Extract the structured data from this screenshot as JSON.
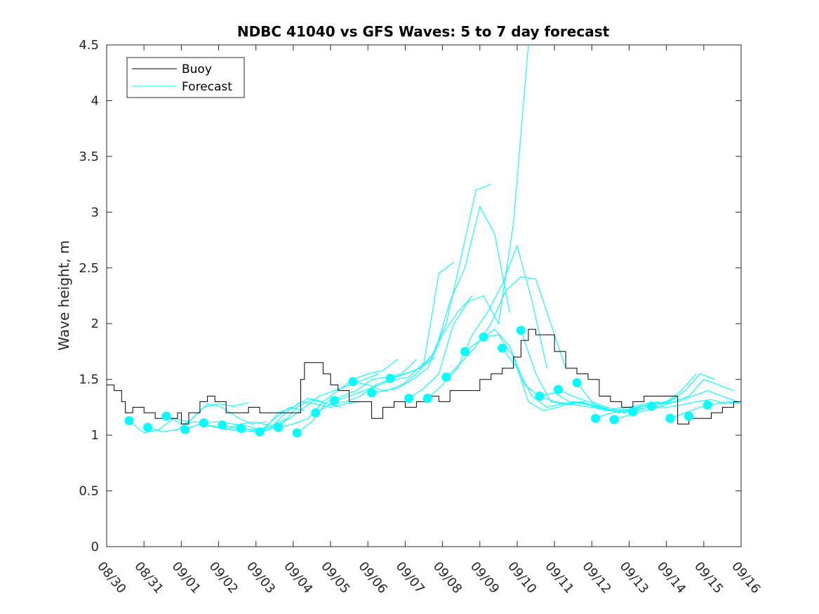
{
  "chart_data": {
    "type": "line",
    "title": "NDBC 41040 vs GFS Waves: 5 to 7 day forecast",
    "xlabel": "",
    "ylabel": "Wave height, m",
    "xlim": [
      0,
      17
    ],
    "ylim": [
      0,
      4.5
    ],
    "x_tick_labels": [
      "08/30",
      "08/31",
      "09/01",
      "09/02",
      "09/03",
      "09/04",
      "09/05",
      "09/06",
      "09/07",
      "09/08",
      "09/09",
      "09/10",
      "09/11",
      "09/12",
      "09/13",
      "09/14",
      "09/15",
      "09/16"
    ],
    "y_tick_labels": [
      "0",
      "0.5",
      "1",
      "1.5",
      "2",
      "2.5",
      "3",
      "3.5",
      "4",
      "4.5"
    ],
    "y_ticks": [
      0,
      0.5,
      1,
      1.5,
      2,
      2.5,
      3,
      3.5,
      4,
      4.5
    ],
    "legend": [
      {
        "label": "Buoy",
        "color": "#000000"
      },
      {
        "label": "Forecast",
        "color": "#00ffff"
      }
    ],
    "legend_position": "top-left",
    "colors": {
      "buoy": "#000000",
      "forecast": "#00ffff"
    },
    "buoy": {
      "x": [
        0,
        0.2,
        0.4,
        0.5,
        0.7,
        1.0,
        1.3,
        1.6,
        1.9,
        2.0,
        2.2,
        2.4,
        2.5,
        2.7,
        2.9,
        3.2,
        3.5,
        3.8,
        4.1,
        4.4,
        4.7,
        5.0,
        5.2,
        5.3,
        5.5,
        5.8,
        6.0,
        6.2,
        6.5,
        6.8,
        7.1,
        7.4,
        7.7,
        8.0,
        8.3,
        8.6,
        8.9,
        9.2,
        9.5,
        9.7,
        10.0,
        10.3,
        10.6,
        10.9,
        11.1,
        11.3,
        11.5,
        11.8,
        12.0,
        12.3,
        12.6,
        12.9,
        13.2,
        13.5,
        13.8,
        14.1,
        14.4,
        14.7,
        15.0,
        15.3,
        15.6,
        15.9,
        16.2,
        16.5,
        16.8,
        17.0
      ],
      "y": [
        1.45,
        1.4,
        1.3,
        1.2,
        1.25,
        1.2,
        1.15,
        1.15,
        1.2,
        1.1,
        1.2,
        1.2,
        1.3,
        1.35,
        1.3,
        1.2,
        1.2,
        1.25,
        1.2,
        1.2,
        1.2,
        1.2,
        1.5,
        1.65,
        1.65,
        1.55,
        1.45,
        1.4,
        1.3,
        1.3,
        1.15,
        1.25,
        1.3,
        1.25,
        1.3,
        1.35,
        1.3,
        1.4,
        1.4,
        1.4,
        1.5,
        1.55,
        1.6,
        1.7,
        1.85,
        1.95,
        1.9,
        1.9,
        1.75,
        1.6,
        1.55,
        1.5,
        1.35,
        1.3,
        1.25,
        1.3,
        1.35,
        1.35,
        1.35,
        1.1,
        1.15,
        1.15,
        1.2,
        1.25,
        1.3,
        1.3
      ]
    },
    "forecast_points": {
      "x": [
        0.6,
        1.1,
        1.6,
        2.1,
        2.6,
        3.1,
        3.6,
        4.1,
        4.6,
        5.1,
        5.6,
        6.1,
        6.6,
        7.1,
        7.6,
        8.1,
        8.6,
        9.1,
        9.6,
        10.1,
        10.6,
        11.1,
        11.6,
        12.1,
        12.6,
        13.1,
        13.6,
        14.1,
        14.6,
        15.1,
        15.6,
        16.1
      ],
      "y": [
        1.13,
        1.07,
        1.17,
        1.05,
        1.11,
        1.09,
        1.06,
        1.03,
        1.07,
        1.02,
        1.2,
        1.31,
        1.48,
        1.38,
        1.51,
        1.33,
        1.33,
        1.52,
        1.75,
        1.88,
        1.78,
        1.94,
        1.35,
        1.41,
        1.47,
        1.15,
        1.14,
        1.21,
        1.26,
        1.15,
        1.17,
        1.27
      ]
    },
    "forecast_runs": [
      {
        "x": [
          0.6,
          1.0,
          1.4,
          1.8,
          2.2,
          2.6,
          3.0,
          3.4,
          3.8
        ],
        "y": [
          1.13,
          1.02,
          1.05,
          1.15,
          1.12,
          1.25,
          1.28,
          1.26,
          1.29
        ]
      },
      {
        "x": [
          1.1,
          1.5,
          1.9,
          2.3,
          2.7,
          3.1,
          3.5,
          3.9,
          4.3
        ],
        "y": [
          1.07,
          1.03,
          1.05,
          1.15,
          1.28,
          1.25,
          1.16,
          1.1,
          1.12
        ]
      },
      {
        "x": [
          1.6,
          2.0,
          2.4,
          2.8,
          3.2,
          3.6,
          4.0,
          4.4,
          4.8
        ],
        "y": [
          1.17,
          1.1,
          1.12,
          1.08,
          1.05,
          1.1,
          1.12,
          1.08,
          1.15
        ]
      },
      {
        "x": [
          2.1,
          2.5,
          2.9,
          3.3,
          3.7,
          4.1,
          4.5,
          4.9,
          5.3
        ],
        "y": [
          1.05,
          1.1,
          1.08,
          1.05,
          1.04,
          1.03,
          1.15,
          1.25,
          1.22
        ]
      },
      {
        "x": [
          2.6,
          3.0,
          3.4,
          3.8,
          4.2,
          4.6,
          5.0,
          5.4,
          5.8
        ],
        "y": [
          1.11,
          1.12,
          1.1,
          1.08,
          1.04,
          1.2,
          1.25,
          1.33,
          1.3
        ]
      },
      {
        "x": [
          3.1,
          3.5,
          3.9,
          4.3,
          4.7,
          5.1,
          5.5,
          5.9,
          6.3
        ],
        "y": [
          1.09,
          1.06,
          1.05,
          1.04,
          1.1,
          1.25,
          1.32,
          1.28,
          1.25
        ]
      },
      {
        "x": [
          3.6,
          4.0,
          4.4,
          4.8,
          5.2,
          5.6,
          6.0,
          6.4,
          6.8
        ],
        "y": [
          1.06,
          1.05,
          1.07,
          1.2,
          1.3,
          1.28,
          1.25,
          1.28,
          1.3
        ]
      },
      {
        "x": [
          4.1,
          4.5,
          4.9,
          5.3,
          5.7,
          6.1,
          6.5,
          6.9,
          7.3
        ],
        "y": [
          1.03,
          1.08,
          1.15,
          1.25,
          1.35,
          1.4,
          1.45,
          1.5,
          1.55
        ]
      },
      {
        "x": [
          4.6,
          5.0,
          5.4,
          5.8,
          6.2,
          6.6,
          7.0,
          7.4,
          7.8
        ],
        "y": [
          1.07,
          1.1,
          1.15,
          1.3,
          1.4,
          1.5,
          1.55,
          1.58,
          1.68
        ]
      },
      {
        "x": [
          5.1,
          5.5,
          5.9,
          6.3,
          6.7,
          7.1,
          7.5,
          7.9,
          8.3
        ],
        "y": [
          1.02,
          1.12,
          1.3,
          1.35,
          1.4,
          1.5,
          1.52,
          1.55,
          1.68
        ]
      },
      {
        "x": [
          5.6,
          6.0,
          6.4,
          6.8,
          7.2,
          7.6,
          8.0,
          8.4,
          8.8
        ],
        "y": [
          1.2,
          1.28,
          1.3,
          1.35,
          1.45,
          1.5,
          1.55,
          1.6,
          1.7
        ]
      },
      {
        "x": [
          6.1,
          6.5,
          6.9,
          7.3,
          7.7,
          8.1,
          8.5,
          8.9,
          9.3
        ],
        "y": [
          1.31,
          1.35,
          1.4,
          1.45,
          1.5,
          1.52,
          1.65,
          2.45,
          2.55
        ]
      },
      {
        "x": [
          6.6,
          7.0,
          7.4,
          7.8,
          8.2,
          8.6,
          9.0,
          9.4,
          9.8
        ],
        "y": [
          1.48,
          1.45,
          1.4,
          1.42,
          1.5,
          1.6,
          1.9,
          2.1,
          2.25
        ]
      },
      {
        "x": [
          7.1,
          7.5,
          7.9,
          8.3,
          8.7,
          9.1,
          9.5,
          9.9,
          10.3
        ],
        "y": [
          1.38,
          1.4,
          1.45,
          1.55,
          1.7,
          2.0,
          2.6,
          3.2,
          3.25
        ]
      },
      {
        "x": [
          7.6,
          8.0,
          8.4,
          8.8,
          9.2,
          9.6,
          10.0,
          10.4,
          10.8
        ],
        "y": [
          1.51,
          1.55,
          1.6,
          1.75,
          2.2,
          2.5,
          3.05,
          2.8,
          2.1
        ]
      },
      {
        "x": [
          8.1,
          8.5,
          8.9,
          9.3,
          9.7,
          10.1,
          10.5,
          10.9,
          11.3
        ],
        "y": [
          1.33,
          1.42,
          1.55,
          2.0,
          2.2,
          2.25,
          2.0,
          2.9,
          4.5
        ]
      },
      {
        "x": [
          8.6,
          9.0,
          9.4,
          9.8,
          10.2,
          10.6,
          11.0,
          11.4,
          11.8
        ],
        "y": [
          1.33,
          1.45,
          1.6,
          1.9,
          2.1,
          2.35,
          2.7,
          2.2,
          1.6
        ]
      },
      {
        "x": [
          9.1,
          9.5,
          9.9,
          10.3,
          10.7,
          11.1,
          11.5,
          11.9,
          12.3
        ],
        "y": [
          1.52,
          1.65,
          1.8,
          2.0,
          2.3,
          2.42,
          2.4,
          2.0,
          1.6
        ]
      },
      {
        "x": [
          9.6,
          10.0,
          10.4,
          10.8,
          11.2,
          11.6,
          12.0,
          12.4,
          12.8
        ],
        "y": [
          1.75,
          1.85,
          1.95,
          1.8,
          1.45,
          1.35,
          1.3,
          1.28,
          1.3
        ]
      },
      {
        "x": [
          10.1,
          10.5,
          10.9,
          11.3,
          11.7,
          12.1,
          12.5,
          12.9,
          13.3
        ],
        "y": [
          1.88,
          1.9,
          1.7,
          1.3,
          1.22,
          1.25,
          1.3,
          1.28,
          1.25
        ]
      },
      {
        "x": [
          10.6,
          11.0,
          11.4,
          11.8,
          12.2,
          12.6,
          13.0,
          13.4,
          13.8
        ],
        "y": [
          1.78,
          1.6,
          1.35,
          1.25,
          1.28,
          1.27,
          1.25,
          1.22,
          1.25
        ]
      },
      {
        "x": [
          11.1,
          11.5,
          11.9,
          12.3,
          12.7,
          13.1,
          13.5,
          13.9,
          14.3
        ],
        "y": [
          1.94,
          1.55,
          1.3,
          1.28,
          1.3,
          1.25,
          1.22,
          1.2,
          1.25
        ]
      },
      {
        "x": [
          11.6,
          12.0,
          12.4,
          12.8,
          13.2,
          13.6,
          14.0,
          14.4,
          14.8
        ],
        "y": [
          1.35,
          1.38,
          1.3,
          1.28,
          1.25,
          1.22,
          1.25,
          1.28,
          1.3
        ]
      },
      {
        "x": [
          12.1,
          12.5,
          12.9,
          13.3,
          13.7,
          14.1,
          14.5,
          14.9,
          15.3
        ],
        "y": [
          1.41,
          1.35,
          1.3,
          1.25,
          1.2,
          1.22,
          1.25,
          1.28,
          1.35
        ]
      },
      {
        "x": [
          12.6,
          13.0,
          13.4,
          13.8,
          14.2,
          14.6,
          15.0,
          15.4,
          15.8
        ],
        "y": [
          1.47,
          1.3,
          1.25,
          1.22,
          1.25,
          1.28,
          1.3,
          1.4,
          1.55
        ]
      },
      {
        "x": [
          13.1,
          13.5,
          13.9,
          14.3,
          14.7,
          15.1,
          15.5,
          15.9,
          16.3
        ],
        "y": [
          1.15,
          1.2,
          1.22,
          1.25,
          1.28,
          1.3,
          1.4,
          1.55,
          1.5
        ]
      },
      {
        "x": [
          13.6,
          14.0,
          14.4,
          14.8,
          15.2,
          15.6,
          16.0,
          16.4,
          16.8
        ],
        "y": [
          1.14,
          1.18,
          1.22,
          1.25,
          1.3,
          1.35,
          1.5,
          1.45,
          1.4
        ]
      },
      {
        "x": [
          14.1,
          14.5,
          14.9,
          15.3,
          15.7,
          16.1,
          16.5,
          16.9,
          17.0
        ],
        "y": [
          1.21,
          1.25,
          1.28,
          1.3,
          1.35,
          1.4,
          1.35,
          1.3,
          1.3
        ]
      },
      {
        "x": [
          14.6,
          15.0,
          15.4,
          15.8,
          16.2,
          16.6,
          17.0
        ],
        "y": [
          1.26,
          1.25,
          1.27,
          1.3,
          1.32,
          1.28,
          1.3
        ]
      },
      {
        "x": [
          15.1,
          15.5,
          15.9,
          16.3,
          16.7,
          17.0
        ],
        "y": [
          1.15,
          1.2,
          1.25,
          1.28,
          1.3,
          1.28
        ]
      }
    ]
  }
}
